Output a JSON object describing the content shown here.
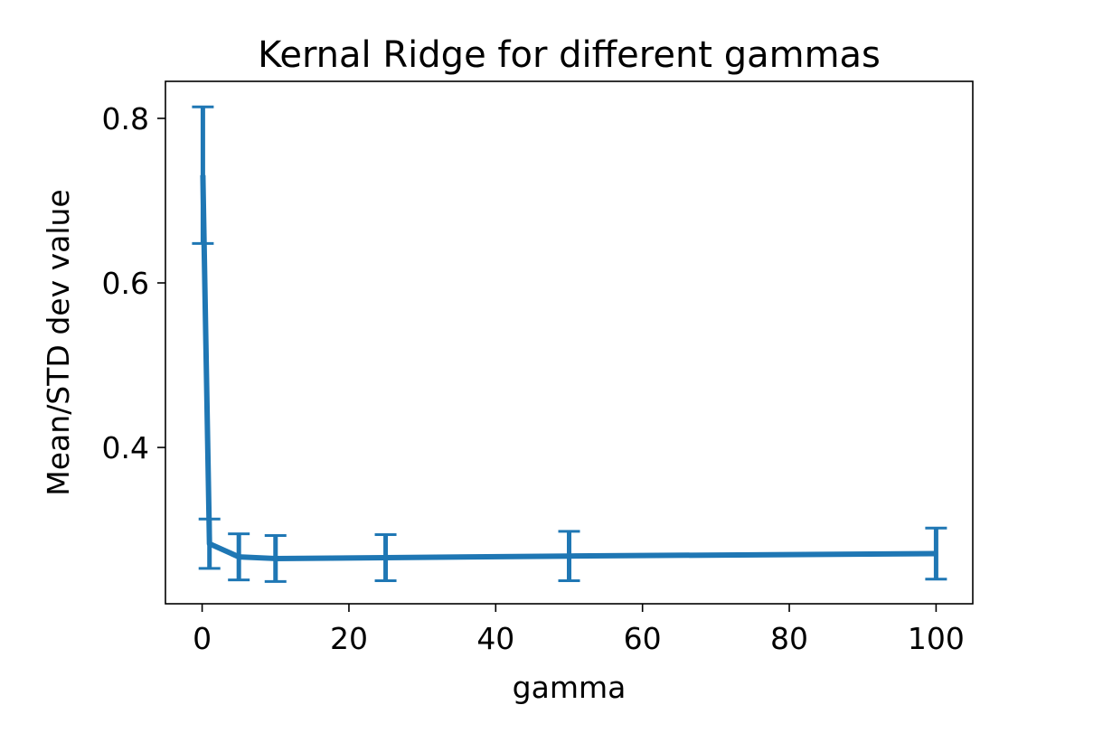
{
  "chart_data": {
    "type": "line",
    "title": "Kernal Ridge for different gammas",
    "xlabel": "gamma",
    "ylabel": "Mean/STD dev value",
    "xlim": [
      -5,
      105
    ],
    "ylim": [
      0.21,
      0.845
    ],
    "xticks": [
      0,
      20,
      40,
      60,
      80,
      100
    ],
    "yticks": [
      0.4,
      0.6,
      0.8
    ],
    "xtick_labels": [
      "0",
      "20",
      "40",
      "60",
      "80",
      "100"
    ],
    "ytick_labels": [
      "0.4",
      "0.6",
      "0.8"
    ],
    "grid": false,
    "legend": false,
    "series": [
      {
        "name": "mean",
        "color": "#1f77b4",
        "x": [
          0.1,
          1,
          5,
          10,
          25,
          50,
          100
        ],
        "y": [
          0.731,
          0.283,
          0.267,
          0.265,
          0.266,
          0.268,
          0.271
        ],
        "yerr": [
          0.083,
          0.03,
          0.028,
          0.028,
          0.028,
          0.03,
          0.031
        ]
      }
    ]
  }
}
